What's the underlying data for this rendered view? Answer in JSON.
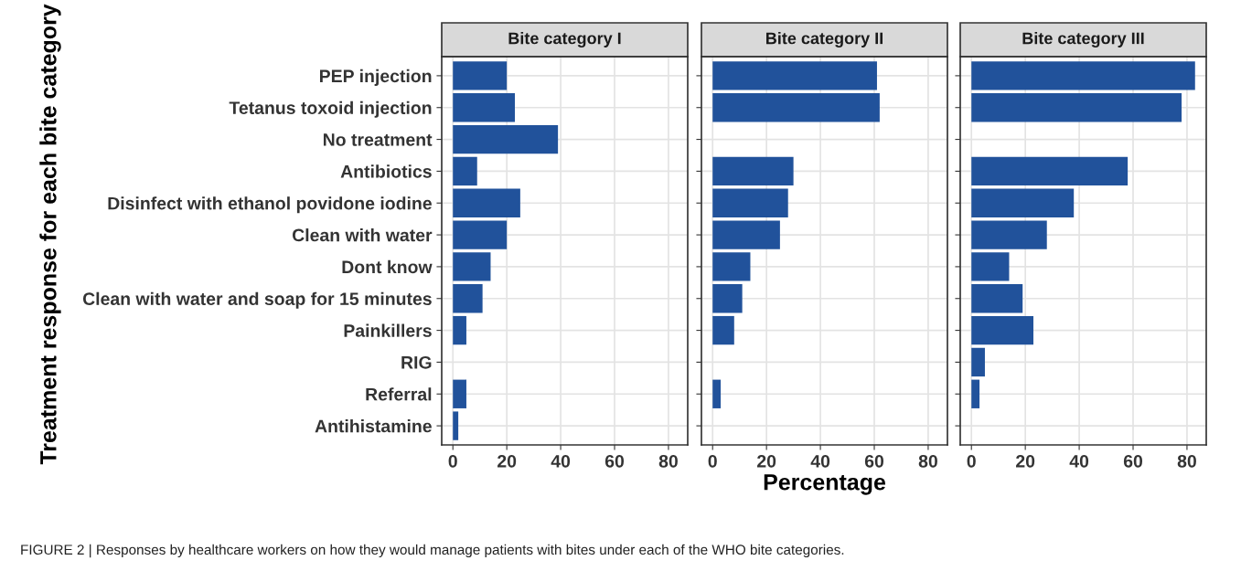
{
  "chart_data": [
    {
      "type": "bar",
      "orientation": "horizontal",
      "title": "Bite category I",
      "ylabel": "Treatment response for each bite category",
      "categories": [
        "PEP injection",
        "Tetanus toxoid injection",
        "No treatment",
        "Antibiotics",
        "Disinfect with ethanol povidone iodine",
        "Clean with water",
        "Dont know",
        "Clean with water and soap for 15 minutes",
        "Painkillers",
        "RIG",
        "Referral",
        "Antihistamine"
      ],
      "series": [
        {
          "color": "#21529b",
          "values": [
            20,
            23,
            39,
            9,
            25,
            20,
            14,
            11,
            5,
            null,
            5,
            2
          ]
        }
      ],
      "xlim": [
        -4.15,
        87.15
      ],
      "xticks": [
        0,
        20,
        40,
        60,
        80
      ],
      "grid": true,
      "annotations": [
        "FIGURE 2 | Responses by healthcare workers on how they would manage patients with bites under each of the WHO bite categories."
      ]
    },
    {
      "type": "bar",
      "orientation": "horizontal",
      "title": "Bite category II",
      "xlabel": "Percentage",
      "categories": [
        null,
        null,
        null,
        null,
        null,
        null,
        null,
        null,
        null,
        null,
        null,
        null
      ],
      "series": [
        {
          "color": "#21529b",
          "values": [
            61,
            62,
            null,
            30,
            28,
            25,
            14,
            11,
            8,
            null,
            3,
            null
          ]
        }
      ],
      "xlim": [
        -4.15,
        87.15
      ],
      "xticks": [
        0,
        20,
        40,
        60,
        80
      ],
      "grid": true,
      "tick_labels": "x"
    },
    {
      "type": "bar",
      "orientation": "horizontal",
      "title": "Bite category III",
      "categories": [
        null,
        null,
        null,
        null,
        null,
        null,
        null,
        null,
        null,
        null,
        null,
        null
      ],
      "series": [
        {
          "color": "#21529b",
          "values": [
            83,
            78,
            null,
            58,
            38,
            28,
            14,
            19,
            23,
            5,
            3,
            null
          ]
        }
      ],
      "xlim": [
        -4.15,
        87.15
      ],
      "xticks": [
        0,
        20,
        40,
        60,
        80
      ],
      "grid": true,
      "tick_labels": "x"
    }
  ]
}
